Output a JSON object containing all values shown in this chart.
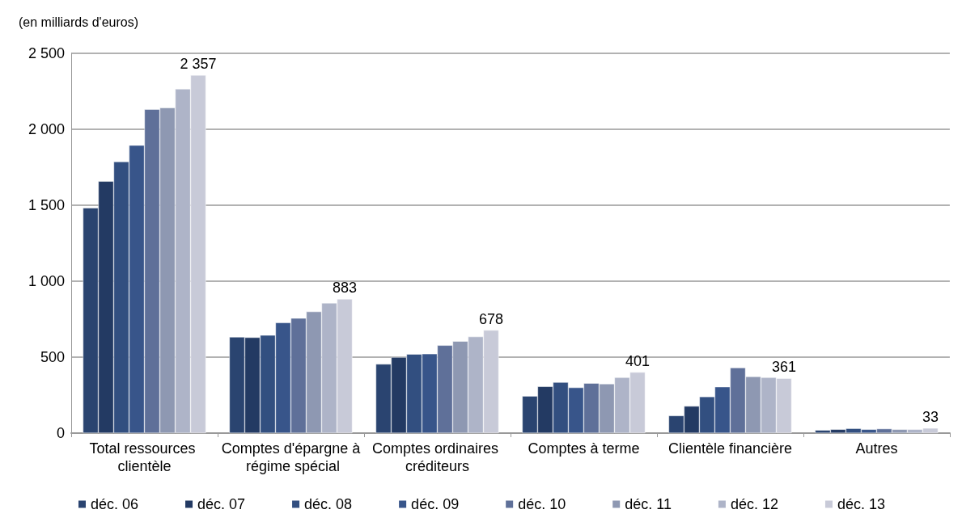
{
  "chart_data": {
    "type": "bar",
    "ylabel": "(en milliards d'euros)",
    "categories": [
      "Total ressources clientèle",
      "Comptes d'épargne à régime spécial",
      "Comptes ordinaires créditeurs",
      "Comptes à terme",
      "Clientèle financière",
      "Autres"
    ],
    "series": [
      {
        "name": "déc. 06",
        "color": "#2a4470",
        "values": [
          1483,
          633,
          455,
          244,
          115,
          20
        ]
      },
      {
        "name": "déc. 07",
        "color": "#233a63",
        "values": [
          1658,
          630,
          500,
          307,
          178,
          25
        ]
      },
      {
        "name": "déc. 08",
        "color": "#324f80",
        "values": [
          1787,
          645,
          520,
          335,
          240,
          31
        ]
      },
      {
        "name": "déc. 09",
        "color": "#38558a",
        "values": [
          1895,
          728,
          522,
          300,
          305,
          25
        ]
      },
      {
        "name": "déc. 10",
        "color": "#5f7099",
        "values": [
          2132,
          757,
          578,
          329,
          431,
          29
        ]
      },
      {
        "name": "déc. 11",
        "color": "#8e98b2",
        "values": [
          2142,
          800,
          605,
          325,
          373,
          25
        ]
      },
      {
        "name": "déc. 12",
        "color": "#aeb4c8",
        "values": [
          2266,
          857,
          635,
          367,
          367,
          25
        ]
      },
      {
        "name": "déc. 13",
        "color": "#c8cad8",
        "values": [
          2357,
          883,
          678,
          401,
          361,
          33
        ],
        "value_labels": [
          "2 357",
          "883",
          "678",
          "401",
          "361",
          "33"
        ]
      }
    ],
    "ylim": [
      0,
      2500
    ],
    "yticks": [
      0,
      500,
      {
        "value": 1000,
        "label": "1 000"
      },
      {
        "value": 1500,
        "label": "1 500"
      },
      {
        "value": 2000,
        "label": "2 000"
      },
      {
        "value": 2500,
        "label": "2 500"
      }
    ],
    "grid": "y",
    "legend": "bottom"
  }
}
